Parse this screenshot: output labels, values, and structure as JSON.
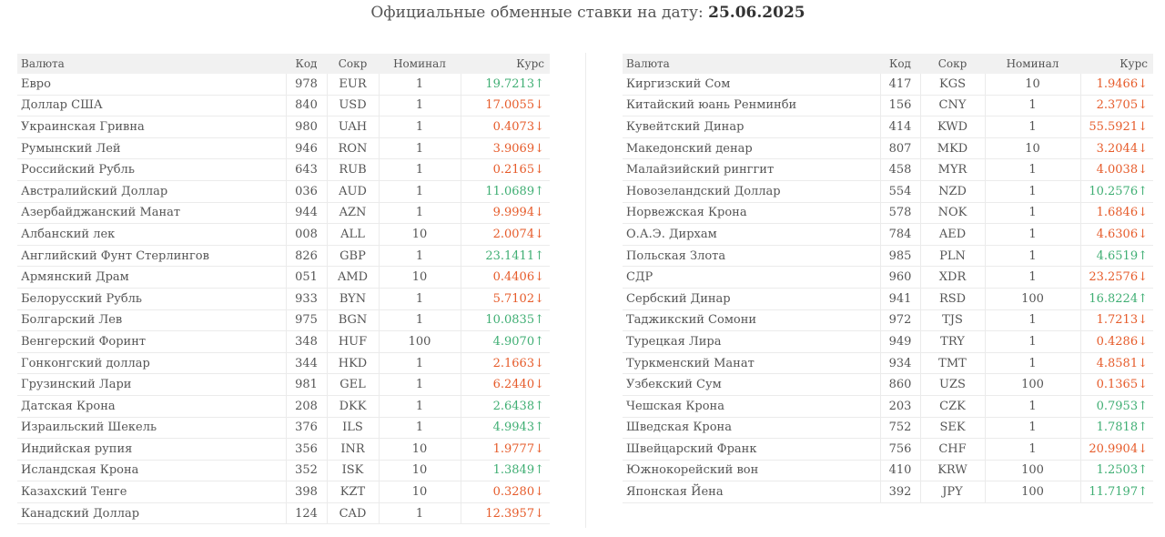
{
  "header": {
    "title": "Официальные обменные ставки на дату:",
    "date": "25.06.2025"
  },
  "columns": {
    "name": "Валюта",
    "code": "Код",
    "abbr": "Сокр",
    "nominal": "Номинал",
    "rate": "Курс"
  },
  "colors": {
    "up": "#3fae73",
    "down": "#e65b2a"
  },
  "left_rows": [
    {
      "name": "Евро",
      "code": "978",
      "abbr": "EUR",
      "nominal": "1",
      "rate": "19.7213↑",
      "dir": "up"
    },
    {
      "name": "Доллар США",
      "code": "840",
      "abbr": "USD",
      "nominal": "1",
      "rate": "17.0055↓",
      "dir": "down"
    },
    {
      "name": "Украинская Гривна",
      "code": "980",
      "abbr": "UAH",
      "nominal": "1",
      "rate": "0.4073↓",
      "dir": "down"
    },
    {
      "name": "Румынский Лей",
      "code": "946",
      "abbr": "RON",
      "nominal": "1",
      "rate": "3.9069↓",
      "dir": "down"
    },
    {
      "name": "Российский Рубль",
      "code": "643",
      "abbr": "RUB",
      "nominal": "1",
      "rate": "0.2165↓",
      "dir": "down"
    },
    {
      "name": "Австралийский Доллар",
      "code": "036",
      "abbr": "AUD",
      "nominal": "1",
      "rate": "11.0689↑",
      "dir": "up"
    },
    {
      "name": "Азербайджанский Манат",
      "code": "944",
      "abbr": "AZN",
      "nominal": "1",
      "rate": "9.9994↓",
      "dir": "down"
    },
    {
      "name": "Албанский лек",
      "code": "008",
      "abbr": "ALL",
      "nominal": "10",
      "rate": "2.0074↓",
      "dir": "down"
    },
    {
      "name": "Английский Фунт Стерлингов",
      "code": "826",
      "abbr": "GBP",
      "nominal": "1",
      "rate": "23.1411↑",
      "dir": "up"
    },
    {
      "name": "Армянский Драм",
      "code": "051",
      "abbr": "AMD",
      "nominal": "10",
      "rate": "0.4406↓",
      "dir": "down"
    },
    {
      "name": "Белорусский Рубль",
      "code": "933",
      "abbr": "BYN",
      "nominal": "1",
      "rate": "5.7102↓",
      "dir": "down"
    },
    {
      "name": "Болгарский Лев",
      "code": "975",
      "abbr": "BGN",
      "nominal": "1",
      "rate": "10.0835↑",
      "dir": "up"
    },
    {
      "name": "Венгерский Форинт",
      "code": "348",
      "abbr": "HUF",
      "nominal": "100",
      "rate": "4.9070↑",
      "dir": "up"
    },
    {
      "name": "Гонконгский доллар",
      "code": "344",
      "abbr": "HKD",
      "nominal": "1",
      "rate": "2.1663↓",
      "dir": "down"
    },
    {
      "name": "Грузинский Лари",
      "code": "981",
      "abbr": "GEL",
      "nominal": "1",
      "rate": "6.2440↓",
      "dir": "down"
    },
    {
      "name": "Датская Крона",
      "code": "208",
      "abbr": "DKK",
      "nominal": "1",
      "rate": "2.6438↑",
      "dir": "up"
    },
    {
      "name": "Израильский Шекель",
      "code": "376",
      "abbr": "ILS",
      "nominal": "1",
      "rate": "4.9943↑",
      "dir": "up"
    },
    {
      "name": "Индийская рупия",
      "code": "356",
      "abbr": "INR",
      "nominal": "10",
      "rate": "1.9777↓",
      "dir": "down"
    },
    {
      "name": "Исландская Крона",
      "code": "352",
      "abbr": "ISK",
      "nominal": "10",
      "rate": "1.3849↑",
      "dir": "up"
    },
    {
      "name": "Казахский Тенге",
      "code": "398",
      "abbr": "KZT",
      "nominal": "10",
      "rate": "0.3280↓",
      "dir": "down"
    },
    {
      "name": "Канадский Доллар",
      "code": "124",
      "abbr": "CAD",
      "nominal": "1",
      "rate": "12.3957↓",
      "dir": "down"
    }
  ],
  "right_rows": [
    {
      "name": "Киргизский Сом",
      "code": "417",
      "abbr": "KGS",
      "nominal": "10",
      "rate": "1.9466↓",
      "dir": "down"
    },
    {
      "name": "Китайский юань Ренминби",
      "code": "156",
      "abbr": "CNY",
      "nominal": "1",
      "rate": "2.3705↓",
      "dir": "down"
    },
    {
      "name": "Кувейтский Динар",
      "code": "414",
      "abbr": "KWD",
      "nominal": "1",
      "rate": "55.5921↓",
      "dir": "down"
    },
    {
      "name": "Македонский денар",
      "code": "807",
      "abbr": "MKD",
      "nominal": "10",
      "rate": "3.2044↓",
      "dir": "down"
    },
    {
      "name": "Малайзийский ринггит",
      "code": "458",
      "abbr": "MYR",
      "nominal": "1",
      "rate": "4.0038↓",
      "dir": "down"
    },
    {
      "name": "Новозеландский Доллар",
      "code": "554",
      "abbr": "NZD",
      "nominal": "1",
      "rate": "10.2576↑",
      "dir": "up"
    },
    {
      "name": "Норвежская Крона",
      "code": "578",
      "abbr": "NOK",
      "nominal": "1",
      "rate": "1.6846↓",
      "dir": "down"
    },
    {
      "name": "О.А.Э. Дирхам",
      "code": "784",
      "abbr": "AED",
      "nominal": "1",
      "rate": "4.6306↓",
      "dir": "down"
    },
    {
      "name": "Польская Злота",
      "code": "985",
      "abbr": "PLN",
      "nominal": "1",
      "rate": "4.6519↑",
      "dir": "up"
    },
    {
      "name": "СДР",
      "code": "960",
      "abbr": "XDR",
      "nominal": "1",
      "rate": "23.2576↓",
      "dir": "down"
    },
    {
      "name": "Сербский Динар",
      "code": "941",
      "abbr": "RSD",
      "nominal": "100",
      "rate": "16.8224↑",
      "dir": "up"
    },
    {
      "name": "Таджикский Сомони",
      "code": "972",
      "abbr": "TJS",
      "nominal": "1",
      "rate": "1.7213↓",
      "dir": "down"
    },
    {
      "name": "Турецкая Лира",
      "code": "949",
      "abbr": "TRY",
      "nominal": "1",
      "rate": "0.4286↓",
      "dir": "down"
    },
    {
      "name": "Туркменский Манат",
      "code": "934",
      "abbr": "TMT",
      "nominal": "1",
      "rate": "4.8581↓",
      "dir": "down"
    },
    {
      "name": "Узбекский Сум",
      "code": "860",
      "abbr": "UZS",
      "nominal": "100",
      "rate": "0.1365↓",
      "dir": "down"
    },
    {
      "name": "Чешская Крона",
      "code": "203",
      "abbr": "CZK",
      "nominal": "1",
      "rate": "0.7953↑",
      "dir": "up"
    },
    {
      "name": "Шведская Крона",
      "code": "752",
      "abbr": "SEK",
      "nominal": "1",
      "rate": "1.7818↑",
      "dir": "up"
    },
    {
      "name": "Швейцарский Франк",
      "code": "756",
      "abbr": "CHF",
      "nominal": "1",
      "rate": "20.9904↓",
      "dir": "down"
    },
    {
      "name": "Южнокорейский вон",
      "code": "410",
      "abbr": "KRW",
      "nominal": "100",
      "rate": "1.2503↑",
      "dir": "up"
    },
    {
      "name": "Японская Йена",
      "code": "392",
      "abbr": "JPY",
      "nominal": "100",
      "rate": "11.7197↑",
      "dir": "up"
    }
  ]
}
